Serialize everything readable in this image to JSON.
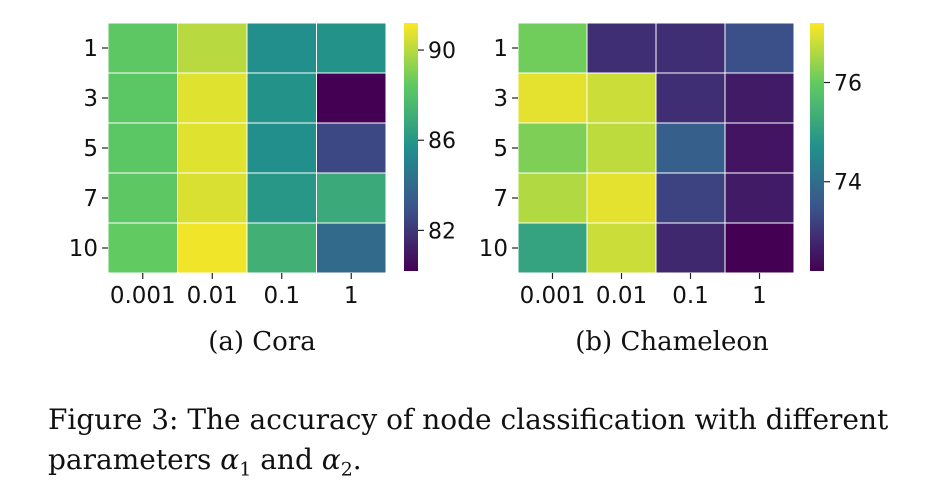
{
  "figure": {
    "caption": {
      "prefix": "Figure 3: The accuracy of node classification with different parameters ",
      "sym1": "α",
      "sub1": "1",
      "mid": " and ",
      "sym2": "α",
      "sub2": "2",
      "suffix": "."
    }
  },
  "colormap": [
    "#440154",
    "#3b528b",
    "#21918c",
    "#5ec962",
    "#fde725"
  ],
  "chart_data": [
    {
      "type": "heatmap",
      "subcaption": "(a) Cora",
      "title": "",
      "xlabel": "",
      "ylabel": "",
      "rows": [
        "1",
        "3",
        "5",
        "7",
        "10"
      ],
      "columns": [
        "0.001",
        "0.01",
        "0.1",
        "1"
      ],
      "values": [
        [
          88.4,
          90.0,
          85.6,
          85.8
        ],
        [
          88.3,
          90.7,
          85.8,
          80.2
        ],
        [
          88.3,
          90.7,
          85.6,
          82.6
        ],
        [
          88.4,
          90.6,
          86.0,
          86.9
        ],
        [
          88.5,
          91.0,
          87.2,
          84.0
        ]
      ],
      "colorbar": {
        "range": [
          80.2,
          91.2
        ],
        "ticks": [
          82,
          86,
          90
        ],
        "tick_labels": [
          "82",
          "86",
          "90"
        ]
      }
    },
    {
      "type": "heatmap",
      "subcaption": "(b) Chameleon",
      "title": "",
      "xlabel": "",
      "ylabel": "",
      "rows": [
        "1",
        "3",
        "5",
        "7",
        "10"
      ],
      "columns": [
        "0.001",
        "0.01",
        "0.1",
        "1"
      ],
      "values": [
        [
          76.1,
          72.9,
          72.9,
          73.4
        ],
        [
          77.0,
          76.8,
          72.9,
          72.6
        ],
        [
          76.2,
          76.7,
          73.7,
          72.5
        ],
        [
          76.6,
          77.0,
          73.2,
          72.6
        ],
        [
          75.1,
          76.8,
          72.8,
          72.2
        ]
      ],
      "colorbar": {
        "range": [
          72.2,
          77.2
        ],
        "ticks": [
          74,
          76
        ],
        "tick_labels": [
          "74",
          "76"
        ]
      }
    }
  ]
}
